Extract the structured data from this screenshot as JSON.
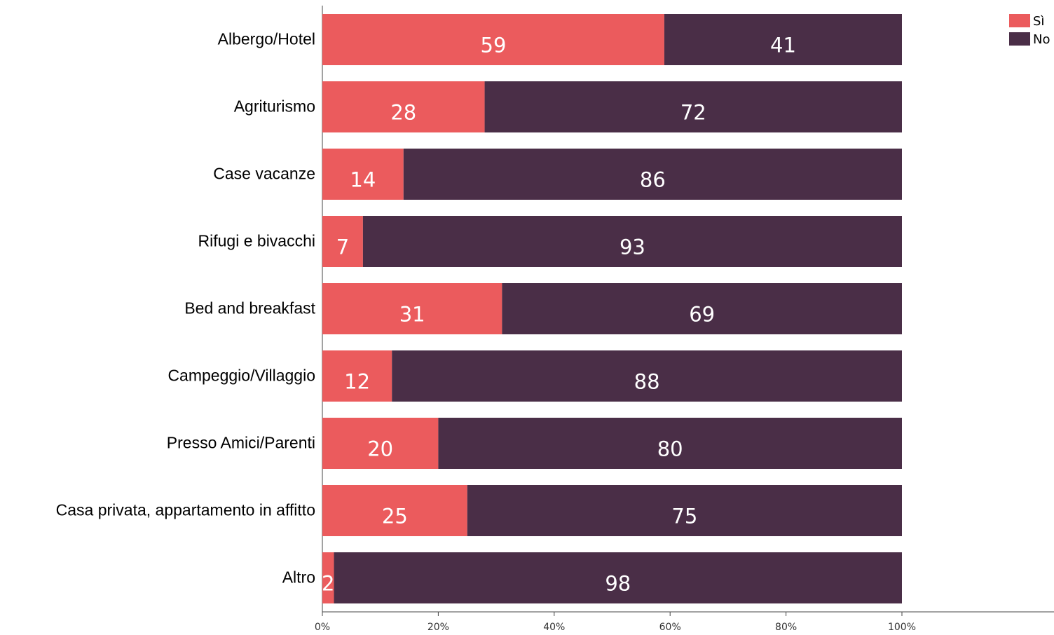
{
  "chart_data": {
    "type": "bar",
    "orientation": "horizontal",
    "stacked": true,
    "categories": [
      "Albergo/Hotel",
      "Agriturismo",
      "Case vacanze",
      "Rifugi e bivacchi",
      "Bed and breakfast",
      "Campeggio/Villaggio",
      "Presso Amici/Parenti",
      "Casa privata, appartamento in affitto",
      "Altro"
    ],
    "series": [
      {
        "name": "Sì",
        "color": "#eb5b5d",
        "values": [
          59,
          28,
          14,
          7,
          31,
          12,
          20,
          25,
          2
        ]
      },
      {
        "name": "No",
        "color": "#4a2e47",
        "values": [
          41,
          72,
          86,
          93,
          69,
          88,
          80,
          75,
          98
        ]
      }
    ],
    "xlim": [
      0,
      100
    ],
    "x_ticks": [
      "0%",
      "20%",
      "40%",
      "60%",
      "80%",
      "100%"
    ],
    "title": "",
    "xlabel": "",
    "ylabel": "",
    "grid": false,
    "legend_position": "top-right"
  }
}
